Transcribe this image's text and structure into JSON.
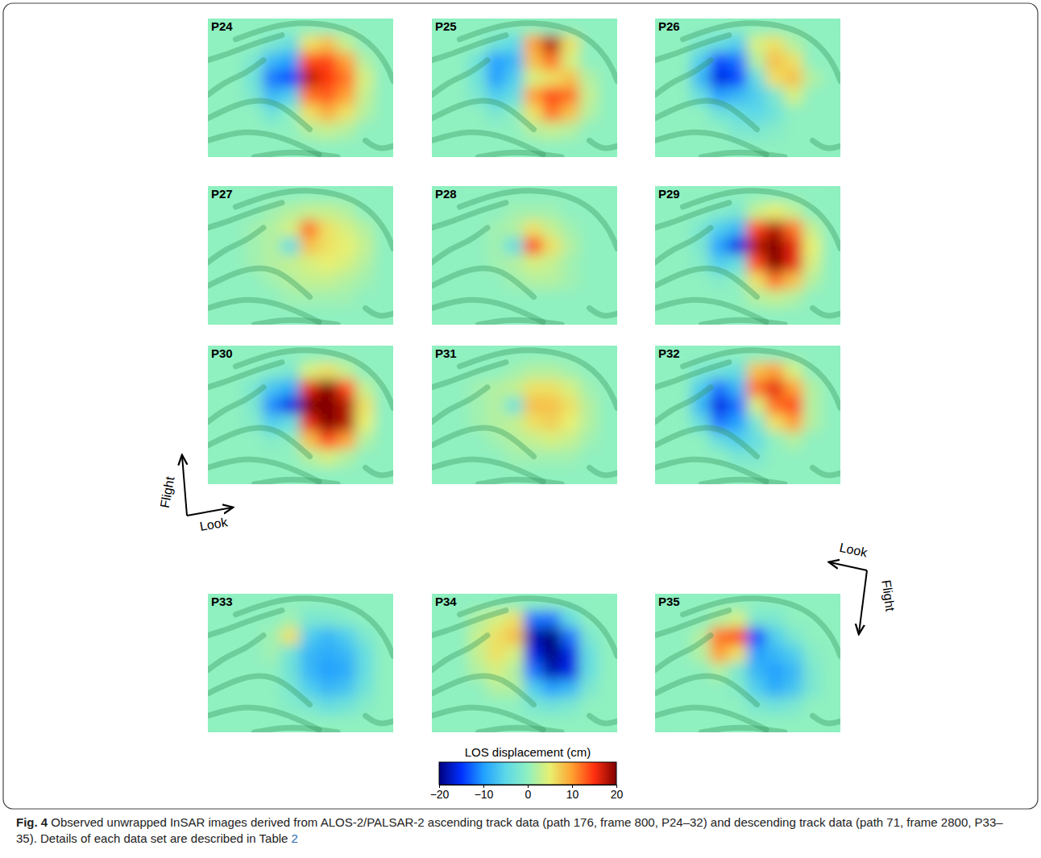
{
  "chart_data": {
    "type": "heatmap",
    "panels": [
      {
        "label": "P24",
        "cells": [
          [
            0,
            0,
            0,
            0,
            0,
            0,
            0,
            0,
            0,
            0
          ],
          [
            0,
            0,
            0,
            -2,
            -4,
            6,
            8,
            3,
            0,
            0
          ],
          [
            0,
            0,
            -2,
            -8,
            -10,
            14,
            14,
            10,
            2,
            0
          ],
          [
            0,
            0,
            -3,
            -12,
            -14,
            18,
            15,
            12,
            4,
            0
          ],
          [
            0,
            0,
            -2,
            -8,
            -6,
            12,
            13,
            10,
            3,
            0
          ],
          [
            0,
            0,
            0,
            -3,
            0,
            6,
            9,
            6,
            2,
            0
          ],
          [
            0,
            0,
            0,
            0,
            0,
            2,
            3,
            2,
            0,
            0
          ],
          [
            0,
            0,
            0,
            0,
            0,
            0,
            0,
            0,
            0,
            0
          ]
        ]
      },
      {
        "label": "P25",
        "cells": [
          [
            0,
            0,
            0,
            0,
            0,
            0,
            0,
            0,
            0,
            0
          ],
          [
            0,
            0,
            0,
            -3,
            -5,
            10,
            18,
            6,
            0,
            0
          ],
          [
            0,
            0,
            -3,
            -10,
            -8,
            8,
            12,
            4,
            0,
            0
          ],
          [
            0,
            0,
            -3,
            -10,
            -6,
            4,
            6,
            8,
            2,
            0
          ],
          [
            0,
            0,
            -2,
            -6,
            -4,
            10,
            14,
            12,
            3,
            0
          ],
          [
            0,
            0,
            0,
            -2,
            0,
            6,
            12,
            8,
            2,
            0
          ],
          [
            0,
            0,
            0,
            0,
            0,
            2,
            3,
            2,
            0,
            0
          ],
          [
            0,
            0,
            0,
            0,
            0,
            0,
            0,
            0,
            0,
            0
          ]
        ]
      },
      {
        "label": "P26",
        "cells": [
          [
            0,
            0,
            0,
            0,
            0,
            0,
            0,
            0,
            0,
            0
          ],
          [
            0,
            0,
            -2,
            -4,
            -6,
            4,
            6,
            2,
            0,
            0
          ],
          [
            0,
            0,
            -6,
            -14,
            -12,
            2,
            8,
            6,
            0,
            0
          ],
          [
            0,
            0,
            -8,
            -16,
            -14,
            -4,
            6,
            8,
            2,
            0
          ],
          [
            0,
            0,
            -4,
            -10,
            -8,
            -6,
            -2,
            4,
            0,
            0
          ],
          [
            0,
            0,
            0,
            -3,
            -4,
            -5,
            -3,
            0,
            0,
            0
          ],
          [
            0,
            0,
            0,
            0,
            -2,
            -2,
            -1,
            0,
            0,
            0
          ],
          [
            0,
            0,
            0,
            0,
            0,
            0,
            0,
            0,
            0,
            0
          ]
        ]
      },
      {
        "label": "P27",
        "cells": [
          [
            0,
            0,
            0,
            0,
            0,
            0,
            0,
            0,
            0,
            0
          ],
          [
            0,
            0,
            0,
            1,
            2,
            3,
            3,
            2,
            0,
            0
          ],
          [
            0,
            0,
            1,
            2,
            4,
            12,
            6,
            4,
            2,
            0
          ],
          [
            0,
            0,
            1,
            2,
            -4,
            8,
            6,
            5,
            3,
            0
          ],
          [
            0,
            0,
            1,
            2,
            3,
            4,
            5,
            4,
            2,
            0
          ],
          [
            0,
            0,
            0,
            1,
            2,
            3,
            3,
            2,
            1,
            0
          ],
          [
            0,
            0,
            0,
            0,
            1,
            1,
            1,
            1,
            0,
            0
          ],
          [
            0,
            0,
            0,
            0,
            0,
            0,
            0,
            0,
            0,
            0
          ]
        ]
      },
      {
        "label": "P28",
        "cells": [
          [
            0,
            0,
            0,
            0,
            0,
            0,
            0,
            0,
            0,
            0
          ],
          [
            0,
            0,
            0,
            0,
            1,
            1,
            1,
            0,
            0,
            0
          ],
          [
            0,
            0,
            0,
            1,
            2,
            6,
            3,
            1,
            0,
            0
          ],
          [
            0,
            0,
            0,
            1,
            -4,
            14,
            6,
            2,
            0,
            0
          ],
          [
            0,
            0,
            0,
            1,
            2,
            4,
            3,
            1,
            0,
            0
          ],
          [
            0,
            0,
            0,
            0,
            1,
            2,
            2,
            1,
            0,
            0
          ],
          [
            0,
            0,
            0,
            0,
            0,
            0,
            0,
            0,
            0,
            0
          ],
          [
            0,
            0,
            0,
            0,
            0,
            0,
            0,
            0,
            0,
            0
          ]
        ]
      },
      {
        "label": "P29",
        "cells": [
          [
            0,
            0,
            0,
            0,
            0,
            0,
            0,
            0,
            0,
            0
          ],
          [
            0,
            0,
            0,
            -1,
            -2,
            3,
            5,
            3,
            0,
            0
          ],
          [
            0,
            0,
            -2,
            -6,
            -8,
            14,
            18,
            12,
            3,
            0
          ],
          [
            0,
            0,
            -2,
            -10,
            -16,
            18,
            20,
            16,
            5,
            0
          ],
          [
            0,
            0,
            -1,
            -6,
            -4,
            14,
            20,
            16,
            4,
            0
          ],
          [
            0,
            0,
            0,
            -1,
            0,
            6,
            12,
            8,
            2,
            0
          ],
          [
            0,
            0,
            0,
            0,
            0,
            2,
            3,
            2,
            0,
            0
          ],
          [
            0,
            0,
            0,
            0,
            0,
            0,
            0,
            0,
            0,
            0
          ]
        ]
      },
      {
        "label": "P30",
        "cells": [
          [
            0,
            0,
            0,
            0,
            0,
            0,
            0,
            0,
            0,
            0
          ],
          [
            0,
            0,
            0,
            -1,
            -2,
            4,
            6,
            3,
            0,
            0
          ],
          [
            0,
            0,
            -2,
            -7,
            -9,
            16,
            20,
            14,
            3,
            0
          ],
          [
            0,
            0,
            -2,
            -11,
            -16,
            20,
            20,
            18,
            6,
            0
          ],
          [
            0,
            0,
            -1,
            -6,
            -4,
            16,
            20,
            18,
            5,
            0
          ],
          [
            0,
            0,
            0,
            -1,
            0,
            8,
            14,
            10,
            2,
            0
          ],
          [
            0,
            0,
            0,
            0,
            0,
            2,
            4,
            2,
            0,
            0
          ],
          [
            0,
            0,
            0,
            0,
            0,
            0,
            0,
            0,
            0,
            0
          ]
        ]
      },
      {
        "label": "P31",
        "cells": [
          [
            0,
            0,
            0,
            0,
            0,
            0,
            0,
            0,
            0,
            0
          ],
          [
            0,
            0,
            0,
            0,
            1,
            2,
            2,
            1,
            0,
            0
          ],
          [
            0,
            0,
            1,
            2,
            3,
            6,
            6,
            4,
            1,
            0
          ],
          [
            0,
            0,
            1,
            2,
            -3,
            8,
            8,
            6,
            2,
            0
          ],
          [
            0,
            0,
            1,
            2,
            3,
            6,
            7,
            5,
            2,
            0
          ],
          [
            0,
            0,
            0,
            1,
            2,
            3,
            4,
            3,
            1,
            0
          ],
          [
            0,
            0,
            0,
            0,
            1,
            1,
            1,
            1,
            0,
            0
          ],
          [
            0,
            0,
            0,
            0,
            0,
            0,
            0,
            0,
            0,
            0
          ]
        ]
      },
      {
        "label": "P32",
        "cells": [
          [
            0,
            0,
            0,
            0,
            0,
            0,
            0,
            0,
            0,
            0
          ],
          [
            0,
            0,
            -2,
            -3,
            -4,
            8,
            10,
            4,
            0,
            0
          ],
          [
            0,
            0,
            -6,
            -12,
            -8,
            12,
            16,
            10,
            2,
            0
          ],
          [
            0,
            0,
            -8,
            -16,
            -12,
            4,
            12,
            14,
            2,
            0
          ],
          [
            0,
            0,
            -4,
            -12,
            -10,
            -2,
            6,
            10,
            2,
            0
          ],
          [
            0,
            0,
            0,
            -4,
            -6,
            -4,
            0,
            2,
            0,
            0
          ],
          [
            0,
            0,
            0,
            0,
            -2,
            -2,
            0,
            0,
            0,
            0
          ],
          [
            0,
            0,
            0,
            0,
            0,
            0,
            0,
            0,
            0,
            0
          ]
        ]
      },
      {
        "label": "P33",
        "cells": [
          [
            0,
            0,
            0,
            0,
            0,
            0,
            0,
            0,
            0,
            0
          ],
          [
            0,
            0,
            0,
            0,
            1,
            -2,
            -2,
            -1,
            0,
            0
          ],
          [
            0,
            0,
            0,
            1,
            6,
            -6,
            -8,
            -6,
            -2,
            0
          ],
          [
            0,
            0,
            0,
            1,
            -3,
            -8,
            -9,
            -8,
            -4,
            0
          ],
          [
            0,
            0,
            0,
            0,
            -3,
            -8,
            -10,
            -9,
            -4,
            0
          ],
          [
            0,
            0,
            0,
            0,
            -2,
            -6,
            -8,
            -7,
            -3,
            0
          ],
          [
            0,
            0,
            0,
            0,
            -1,
            -2,
            -4,
            -3,
            -1,
            0
          ],
          [
            0,
            0,
            0,
            0,
            0,
            0,
            0,
            0,
            0,
            0
          ]
        ]
      },
      {
        "label": "P34",
        "cells": [
          [
            0,
            0,
            0,
            0,
            0,
            0,
            0,
            0,
            0,
            0
          ],
          [
            0,
            0,
            2,
            4,
            6,
            -12,
            -12,
            -4,
            0,
            0
          ],
          [
            0,
            0,
            3,
            6,
            8,
            -18,
            -20,
            -12,
            -2,
            0
          ],
          [
            0,
            0,
            3,
            6,
            4,
            -16,
            -20,
            -16,
            -4,
            0
          ],
          [
            0,
            0,
            2,
            4,
            2,
            -12,
            -18,
            -16,
            -4,
            0
          ],
          [
            0,
            0,
            0,
            2,
            2,
            -6,
            -10,
            -8,
            -2,
            0
          ],
          [
            0,
            0,
            0,
            0,
            0,
            -2,
            -3,
            -2,
            0,
            0
          ],
          [
            0,
            0,
            0,
            0,
            0,
            0,
            0,
            0,
            0,
            0
          ]
        ]
      },
      {
        "label": "P35",
        "cells": [
          [
            0,
            0,
            0,
            0,
            0,
            0,
            0,
            0,
            0,
            0
          ],
          [
            0,
            0,
            0,
            2,
            4,
            -2,
            -2,
            0,
            0,
            0
          ],
          [
            0,
            0,
            2,
            12,
            14,
            -14,
            -6,
            -2,
            0,
            0
          ],
          [
            0,
            0,
            2,
            10,
            6,
            -10,
            -8,
            -6,
            -1,
            0
          ],
          [
            0,
            0,
            0,
            2,
            -2,
            -8,
            -10,
            -8,
            -2,
            0
          ],
          [
            0,
            0,
            0,
            0,
            -1,
            -6,
            -9,
            -7,
            -2,
            0
          ],
          [
            0,
            0,
            0,
            0,
            0,
            -2,
            -3,
            -2,
            0,
            0
          ],
          [
            0,
            0,
            0,
            0,
            0,
            0,
            0,
            0,
            0,
            0
          ]
        ]
      }
    ],
    "colorbar": {
      "title": "LOS displacement (cm)",
      "range": [
        -20,
        20
      ],
      "ticks": [
        -20,
        -10,
        0,
        10,
        20
      ]
    }
  },
  "annotations": {
    "ascending": {
      "flight": "Flight",
      "look": "Look"
    },
    "descending": {
      "flight": "Flight",
      "look": "Look"
    }
  },
  "caption": {
    "label": "Fig. 4",
    "text": " Observed unwrapped InSAR images derived from ALOS-2/PALSAR-2 ascending track data (path 176, frame 800, P24–32) and descending track data (path 71, frame 2800, P33–35). Details of each data set are described in Table ",
    "link": "2"
  }
}
